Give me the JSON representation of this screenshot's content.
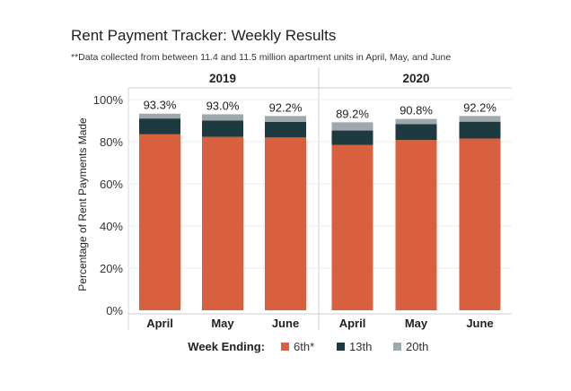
{
  "title": "Rent Payment Tracker: Weekly Results",
  "subtitle": "**Data collected from between 11.4 and 11.5 million apartment units in April, May, and June",
  "colors": {
    "6th": "#d9603f",
    "13th": "#1c3a40",
    "20th": "#9fa9ab"
  },
  "chart_data": {
    "type": "bar",
    "stacked": true,
    "title": "Rent Payment Tracker: Weekly Results",
    "subtitle": "**Data collected from between 11.4 and 11.5 million apartment units in April, May, and June",
    "ylabel": "Percentage of Rent Payments Made",
    "xlabel": "",
    "ylim": [
      0,
      100
    ],
    "yticks": [
      "0%",
      "20%",
      "40%",
      "60%",
      "80%",
      "100%"
    ],
    "ytick_values": [
      0,
      20,
      40,
      60,
      80,
      100
    ],
    "legend_title": "Week Ending:",
    "legend_position": "bottom",
    "groups": [
      {
        "label": "2019",
        "categories": [
          "April",
          "May",
          "June"
        ]
      },
      {
        "label": "2020",
        "categories": [
          "April",
          "May",
          "June"
        ]
      }
    ],
    "series": [
      {
        "name": "6th*",
        "values": [
          83.5,
          82.3,
          82.0,
          78.5,
          80.8,
          81.5
        ]
      },
      {
        "name": "13th",
        "values": [
          7.5,
          7.8,
          7.4,
          6.8,
          7.5,
          8.0
        ]
      },
      {
        "name": "20th",
        "values": [
          2.3,
          2.9,
          2.8,
          3.9,
          2.5,
          2.7
        ]
      }
    ],
    "totals": [
      "93.3%",
      "93.0%",
      "92.2%",
      "89.2%",
      "90.8%",
      "92.2%"
    ]
  }
}
